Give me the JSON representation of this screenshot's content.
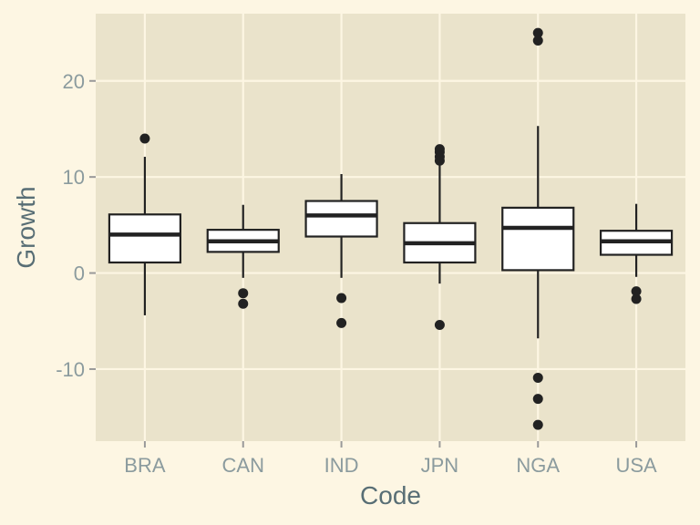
{
  "chart_data": {
    "type": "boxplot",
    "title": "",
    "xlabel": "Code",
    "ylabel": "Growth",
    "ylim": [
      -17.5,
      27
    ],
    "yticks": [
      -10,
      0,
      10,
      20
    ],
    "ytick_labels": [
      "-10",
      "0",
      "10",
      "20"
    ],
    "categories": [
      "BRA",
      "CAN",
      "IND",
      "JPN",
      "NGA",
      "USA"
    ],
    "boxes": [
      {
        "category": "BRA",
        "whisker_low": -4.4,
        "q1": 1.1,
        "median": 4.0,
        "q3": 6.1,
        "whisker_high": 12.1,
        "outliers": [
          14.0
        ]
      },
      {
        "category": "CAN",
        "whisker_low": -0.5,
        "q1": 2.2,
        "median": 3.3,
        "q3": 4.5,
        "whisker_high": 7.1,
        "outliers": [
          -2.1,
          -3.2
        ]
      },
      {
        "category": "IND",
        "whisker_low": -0.5,
        "q1": 3.8,
        "median": 6.0,
        "q3": 7.5,
        "whisker_high": 10.3,
        "outliers": [
          -2.6,
          -5.2
        ]
      },
      {
        "category": "JPN",
        "whisker_low": -1.1,
        "q1": 1.1,
        "median": 3.1,
        "q3": 5.2,
        "whisker_high": 11.3,
        "outliers": [
          11.7,
          12.1,
          12.6,
          12.9,
          -5.4
        ]
      },
      {
        "category": "NGA",
        "whisker_low": -6.8,
        "q1": 0.3,
        "median": 4.7,
        "q3": 6.8,
        "whisker_high": 15.3,
        "outliers": [
          25.0,
          24.2,
          -10.9,
          -13.1,
          -15.8
        ]
      },
      {
        "category": "USA",
        "whisker_low": -0.4,
        "q1": 1.9,
        "median": 3.3,
        "q3": 4.4,
        "whisker_high": 7.2,
        "outliers": [
          -1.9,
          -2.7
        ]
      }
    ]
  },
  "colors": {
    "page_bg": "#fdf6e3",
    "panel_bg": "#eae3cb",
    "grid": "#fdf6e3",
    "box_fill": "#ffffff",
    "box_stroke": "#222222",
    "tick_text": "#8b9b9e",
    "title_text": "#586e75"
  }
}
